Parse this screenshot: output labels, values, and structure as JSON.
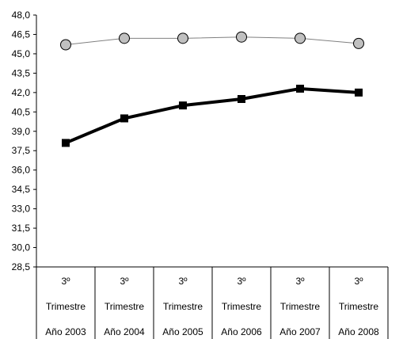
{
  "chart_data": {
    "type": "line",
    "categories": [
      [
        "3º",
        "Trimestre",
        "Año 2003"
      ],
      [
        "3º",
        "Trimestre",
        "Año 2004"
      ],
      [
        "3º",
        "Trimestre",
        "Año 2005"
      ],
      [
        "3º",
        "Trimestre",
        "Año 2006"
      ],
      [
        "3º",
        "Trimestre",
        "Año 2007"
      ],
      [
        "3º",
        "Trimestre",
        "Año 2008"
      ]
    ],
    "series": [
      {
        "values": [
          45.7,
          46.2,
          46.2,
          46.3,
          46.2,
          45.8
        ],
        "color": "#808080",
        "marker": "circle",
        "marker_fill": "#c0c0c0",
        "line_weight": "thin"
      },
      {
        "values": [
          38.1,
          40.0,
          41.0,
          41.5,
          42.3,
          42.0
        ],
        "color": "#000000",
        "marker": "square",
        "marker_fill": "#000000",
        "line_weight": "thick"
      }
    ],
    "y_ticks": [
      "28,5",
      "30,0",
      "31,5",
      "33,0",
      "34,5",
      "36,0",
      "37,5",
      "39,0",
      "40,5",
      "42,0",
      "43,5",
      "45,0",
      "46,5",
      "48,0"
    ],
    "ylim": [
      28.5,
      48.0
    ],
    "grid": false,
    "legend": "none"
  }
}
